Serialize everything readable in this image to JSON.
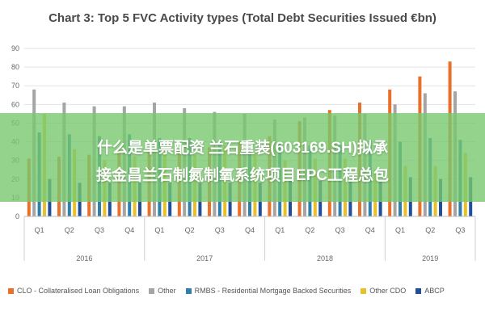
{
  "title": "Chart 3: Top 5 FVC Activity types (Total Debt Securities Issued €bn)",
  "banner": {
    "line1": "什么是单票配资 兰石重装(603169.SH)拟承",
    "line2": "接金昌兰石制氮制氧系统项目EPC工程总包"
  },
  "colors": {
    "CLO": "#e8702a",
    "Other": "#a5a5a5",
    "RMBS": "#2f7fa8",
    "OtherCDO": "#e8c12a",
    "ABCP": "#1f4e9a"
  },
  "chart_data": {
    "type": "bar",
    "title": "Chart 3: Top 5 FVC Activity types (Total Debt Securities Issued €bn)",
    "ylim": [
      0,
      90
    ],
    "yticks": [
      0,
      10,
      20,
      30,
      40,
      50,
      60,
      70,
      80,
      90
    ],
    "grid": true,
    "legend_position": "bottom",
    "categories": [
      "Q1",
      "Q2",
      "Q3",
      "Q4",
      "Q1",
      "Q2",
      "Q3",
      "Q4",
      "Q1",
      "Q2",
      "Q3",
      "Q4",
      "Q1",
      "Q2",
      "Q3"
    ],
    "year_groups": [
      {
        "label": "2016",
        "start": 0,
        "count": 4
      },
      {
        "label": "2017",
        "start": 4,
        "count": 4
      },
      {
        "label": "2018",
        "start": 8,
        "count": 4
      },
      {
        "label": "2019",
        "start": 12,
        "count": 3
      }
    ],
    "series": [
      {
        "name": "CLO - Collateralised Loan Obligations",
        "key": "CLO",
        "values": [
          31,
          32,
          33,
          36,
          35,
          36,
          37,
          40,
          43,
          51,
          57,
          61,
          68,
          75,
          83
        ]
      },
      {
        "name": "Other",
        "key": "Other",
        "values": [
          68,
          61,
          59,
          59,
          61,
          58,
          56,
          55,
          52,
          53,
          54,
          55,
          60,
          66,
          67
        ]
      },
      {
        "name": "RMBS - Residential Mortgage Backed Securities",
        "key": "RMBS",
        "values": [
          45,
          44,
          43,
          44,
          42,
          42,
          40,
          39,
          39,
          38,
          38,
          41,
          40,
          42,
          41
        ]
      },
      {
        "name": "Other CDO",
        "key": "OtherCDO",
        "values": [
          55,
          36,
          30,
          32,
          36,
          33,
          38,
          34,
          30,
          31,
          31,
          25,
          27,
          27,
          34
        ]
      },
      {
        "name": "ABCP",
        "key": "ABCP",
        "values": [
          20,
          18,
          18,
          18,
          18,
          18,
          18,
          18,
          19,
          19,
          19,
          19,
          21,
          20,
          21
        ]
      }
    ]
  }
}
